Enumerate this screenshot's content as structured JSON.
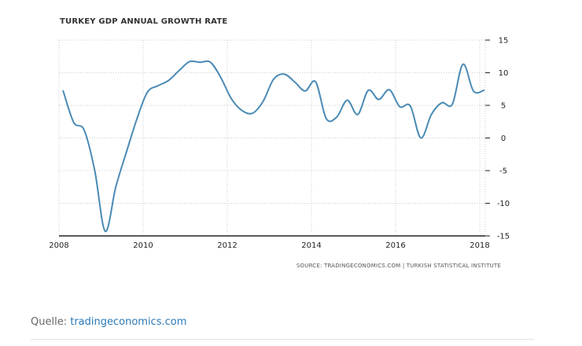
{
  "chart_data": {
    "type": "line",
    "title": "TURKEY GDP ANNUAL GROWTH RATE",
    "source": "SOURCE: TRADINGECONOMICS.COM | TURKISH STATISTICAL INSTITUTE",
    "xlim": [
      2008,
      2018.25
    ],
    "ylim": [
      -15,
      15
    ],
    "x_ticks": [
      "2008",
      "2010",
      "2012",
      "2014",
      "2016",
      "2018"
    ],
    "y_ticks": [
      "15",
      "10",
      "5",
      "0",
      "-5",
      "-10",
      "-15"
    ],
    "grid": true,
    "line_color": "#4a8ab5",
    "series": [
      {
        "x": [
          2008.1,
          2008.35,
          2008.6,
          2008.85,
          2009.1,
          2009.35,
          2009.6,
          2009.85,
          2010.1,
          2010.35,
          2010.6,
          2010.85,
          2011.1,
          2011.35,
          2011.6,
          2011.85,
          2012.1,
          2012.35,
          2012.6,
          2012.85,
          2013.1,
          2013.35,
          2013.6,
          2013.85,
          2014.1,
          2014.35,
          2014.6,
          2014.85,
          2015.1,
          2015.35,
          2015.6,
          2015.85,
          2016.1,
          2016.35,
          2016.6,
          2016.85,
          2017.1,
          2017.35,
          2017.6,
          2017.85,
          2018.1
        ],
        "values": [
          7.2,
          2.4,
          1.2,
          -5.0,
          -14.3,
          -7.5,
          -2.2,
          2.9,
          7.0,
          8.0,
          8.8,
          10.3,
          11.7,
          11.6,
          11.6,
          9.2,
          6.0,
          4.2,
          3.8,
          5.6,
          9.0,
          9.8,
          8.6,
          7.2,
          8.6,
          3.0,
          3.2,
          5.8,
          3.6,
          7.3,
          5.9,
          7.4,
          4.8,
          4.9,
          0.0,
          3.6,
          5.4,
          5.2,
          11.3,
          7.2,
          7.3
        ]
      }
    ]
  },
  "caption": {
    "label": "Quelle: ",
    "link_text": "tradingeconomics.com"
  }
}
